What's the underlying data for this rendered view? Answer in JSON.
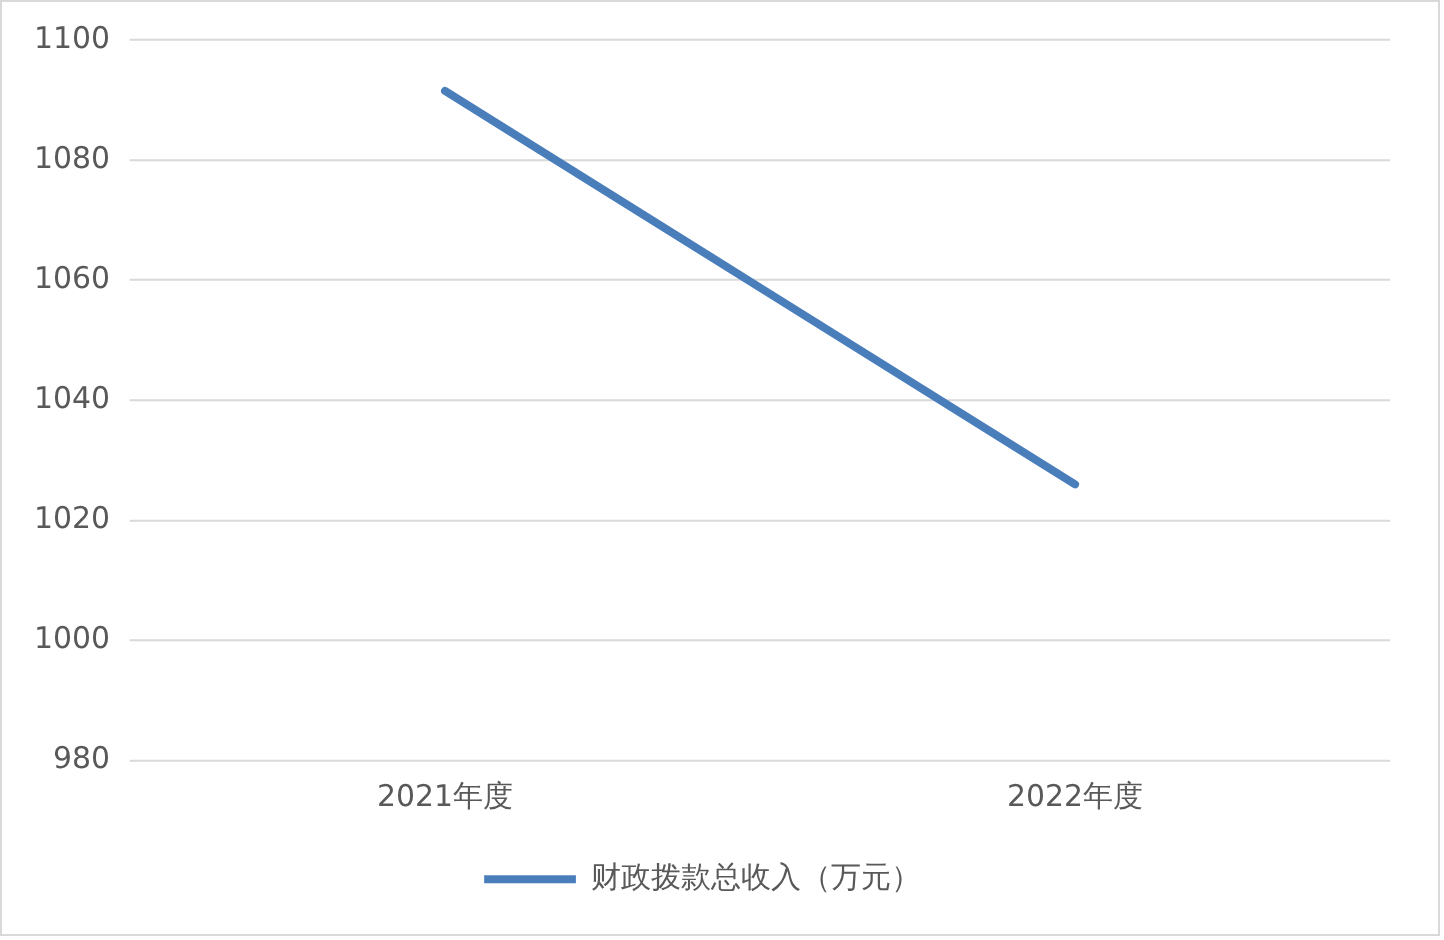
{
  "chart_data": {
    "type": "line",
    "categories": [
      "2021年度",
      "2022年度"
    ],
    "series": [
      {
        "name": "财政拨款总收入（万元）",
        "color": "#4a7ebb",
        "values": [
          1091.5,
          1026
        ]
      }
    ],
    "ylim": [
      980,
      1100
    ],
    "yticks": [
      980,
      1000,
      1020,
      1040,
      1060,
      1080,
      1100
    ],
    "grid": "y",
    "legend": "bottom",
    "marker": "none",
    "line_style": "solid"
  }
}
